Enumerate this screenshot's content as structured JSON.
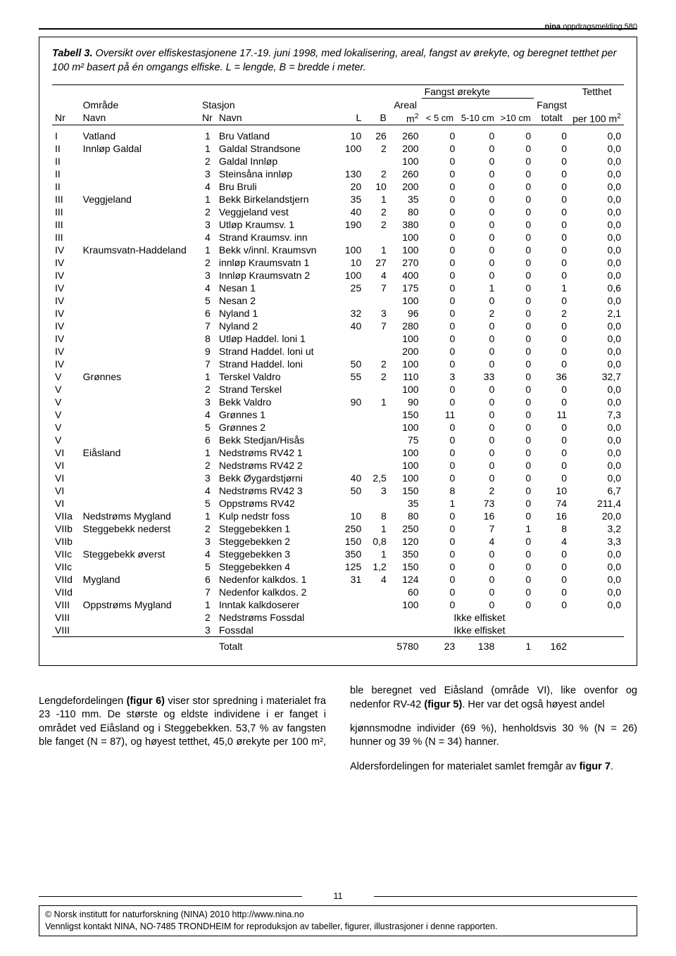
{
  "running_head_bold": "nina",
  "running_head_rest": " oppdragsmelding 580",
  "caption_label": "Tabell 3.",
  "caption_text": " Oversikt over elfiskestasjonene 17.-19. juni 1998, med lokalisering, areal, fangst av ørekyte, og beregnet tetthet per 100 m² basert på én omgangs elfiske. L = lengde, B = bredde i meter.",
  "headers": {
    "omrade": "Område",
    "nr1": "Nr",
    "navn1": "Navn",
    "stasjon": "Stasjon",
    "nr2": "Nr",
    "navn2": "Navn",
    "L": "L",
    "B": "B",
    "areal_group": "Areal",
    "areal_unit": "m²",
    "fangst_group": "Fangst ørekyte",
    "lt5": "< 5 cm",
    "r510": "5-10 cm",
    "gt10": ">10 cm",
    "fangst": "Fangst",
    "totalt": "totalt",
    "tetthet": "Tetthet",
    "per100": "per 100 m²"
  },
  "rows": [
    {
      "nr": "I",
      "omrade": "Vatland",
      "snr": "1",
      "stasjon": "Bru Vatland",
      "L": "10",
      "B": "26",
      "areal": "260",
      "lt5": "0",
      "r510": "0",
      "gt10": "0",
      "tot": "0",
      "tet": "0,0"
    },
    {
      "nr": "II",
      "omrade": "Innløp Galdal",
      "snr": "1",
      "stasjon": "Galdal Strandsone",
      "L": "100",
      "B": "2",
      "areal": "200",
      "lt5": "0",
      "r510": "0",
      "gt10": "0",
      "tot": "0",
      "tet": "0,0"
    },
    {
      "nr": "II",
      "omrade": "",
      "snr": "2",
      "stasjon": "Galdal Innløp",
      "L": "",
      "B": "",
      "areal": "100",
      "lt5": "0",
      "r510": "0",
      "gt10": "0",
      "tot": "0",
      "tet": "0,0"
    },
    {
      "nr": "II",
      "omrade": "",
      "snr": "3",
      "stasjon": "Steinsåna innløp",
      "L": "130",
      "B": "2",
      "areal": "260",
      "lt5": "0",
      "r510": "0",
      "gt10": "0",
      "tot": "0",
      "tet": "0,0"
    },
    {
      "nr": "II",
      "omrade": "",
      "snr": "4",
      "stasjon": "Bru Bruli",
      "L": "20",
      "B": "10",
      "areal": "200",
      "lt5": "0",
      "r510": "0",
      "gt10": "0",
      "tot": "0",
      "tet": "0,0"
    },
    {
      "nr": "III",
      "omrade": "Veggjeland",
      "snr": "1",
      "stasjon": "Bekk Birkelandstjern",
      "L": "35",
      "B": "1",
      "areal": "35",
      "lt5": "0",
      "r510": "0",
      "gt10": "0",
      "tot": "0",
      "tet": "0,0"
    },
    {
      "nr": "III",
      "omrade": "",
      "snr": "2",
      "stasjon": "Veggjeland vest",
      "L": "40",
      "B": "2",
      "areal": "80",
      "lt5": "0",
      "r510": "0",
      "gt10": "0",
      "tot": "0",
      "tet": "0,0"
    },
    {
      "nr": "III",
      "omrade": "",
      "snr": "3",
      "stasjon": "Utløp Kraumsv. 1",
      "L": "190",
      "B": "2",
      "areal": "380",
      "lt5": "0",
      "r510": "0",
      "gt10": "0",
      "tot": "0",
      "tet": "0,0"
    },
    {
      "nr": "III",
      "omrade": "",
      "snr": "4",
      "stasjon": "Strand Kraumsv. inn",
      "L": "",
      "B": "",
      "areal": "100",
      "lt5": "0",
      "r510": "0",
      "gt10": "0",
      "tot": "0",
      "tet": "0,0"
    },
    {
      "nr": "IV",
      "omrade": "Kraumsvatn-Haddeland",
      "snr": "1",
      "stasjon": "Bekk v/innl. Kraumsvn",
      "L": "100",
      "B": "1",
      "areal": "100",
      "lt5": "0",
      "r510": "0",
      "gt10": "0",
      "tot": "0",
      "tet": "0,0"
    },
    {
      "nr": "IV",
      "omrade": "",
      "snr": "2",
      "stasjon": "innløp Kraumsvatn 1",
      "L": "10",
      "B": "27",
      "areal": "270",
      "lt5": "0",
      "r510": "0",
      "gt10": "0",
      "tot": "0",
      "tet": "0,0"
    },
    {
      "nr": "IV",
      "omrade": "",
      "snr": "3",
      "stasjon": "Innløp Kraumsvatn 2",
      "L": "100",
      "B": "4",
      "areal": "400",
      "lt5": "0",
      "r510": "0",
      "gt10": "0",
      "tot": "0",
      "tet": "0,0"
    },
    {
      "nr": "IV",
      "omrade": "",
      "snr": "4",
      "stasjon": "Nesan 1",
      "L": "25",
      "B": "7",
      "areal": "175",
      "lt5": "0",
      "r510": "1",
      "gt10": "0",
      "tot": "1",
      "tet": "0,6"
    },
    {
      "nr": "IV",
      "omrade": "",
      "snr": "5",
      "stasjon": "Nesan 2",
      "L": "",
      "B": "",
      "areal": "100",
      "lt5": "0",
      "r510": "0",
      "gt10": "0",
      "tot": "0",
      "tet": "0,0"
    },
    {
      "nr": "IV",
      "omrade": "",
      "snr": "6",
      "stasjon": "Nyland 1",
      "L": "32",
      "B": "3",
      "areal": "96",
      "lt5": "0",
      "r510": "2",
      "gt10": "0",
      "tot": "2",
      "tet": "2,1"
    },
    {
      "nr": "IV",
      "omrade": "",
      "snr": "7",
      "stasjon": "Nyland 2",
      "L": "40",
      "B": "7",
      "areal": "280",
      "lt5": "0",
      "r510": "0",
      "gt10": "0",
      "tot": "0",
      "tet": "0,0"
    },
    {
      "nr": "IV",
      "omrade": "",
      "snr": "8",
      "stasjon": "Utløp Haddel. loni 1",
      "L": "",
      "B": "",
      "areal": "100",
      "lt5": "0",
      "r510": "0",
      "gt10": "0",
      "tot": "0",
      "tet": "0,0"
    },
    {
      "nr": "IV",
      "omrade": "",
      "snr": "9",
      "stasjon": "Strand Haddel. loni ut",
      "L": "",
      "B": "",
      "areal": "200",
      "lt5": "0",
      "r510": "0",
      "gt10": "0",
      "tot": "0",
      "tet": "0,0"
    },
    {
      "nr": "IV",
      "omrade": "",
      "snr": "7",
      "stasjon": "Strand Haddel. loni",
      "L": "50",
      "B": "2",
      "areal": "100",
      "lt5": "0",
      "r510": "0",
      "gt10": "0",
      "tot": "0",
      "tet": "0,0"
    },
    {
      "nr": "V",
      "omrade": "Grønnes",
      "snr": "1",
      "stasjon": "Terskel Valdro",
      "L": "55",
      "B": "2",
      "areal": "110",
      "lt5": "3",
      "r510": "33",
      "gt10": "0",
      "tot": "36",
      "tet": "32,7"
    },
    {
      "nr": "V",
      "omrade": "",
      "snr": "2",
      "stasjon": "Strand Terskel",
      "L": "",
      "B": "",
      "areal": "100",
      "lt5": "0",
      "r510": "0",
      "gt10": "0",
      "tot": "0",
      "tet": "0,0"
    },
    {
      "nr": "V",
      "omrade": "",
      "snr": "3",
      "stasjon": "Bekk Valdro",
      "L": "90",
      "B": "1",
      "areal": "90",
      "lt5": "0",
      "r510": "0",
      "gt10": "0",
      "tot": "0",
      "tet": "0,0"
    },
    {
      "nr": "V",
      "omrade": "",
      "snr": "4",
      "stasjon": "Grønnes 1",
      "L": "",
      "B": "",
      "areal": "150",
      "lt5": "11",
      "r510": "0",
      "gt10": "0",
      "tot": "11",
      "tet": "7,3"
    },
    {
      "nr": "V",
      "omrade": "",
      "snr": "5",
      "stasjon": "Grønnes 2",
      "L": "",
      "B": "",
      "areal": "100",
      "lt5": "0",
      "r510": "0",
      "gt10": "0",
      "tot": "0",
      "tet": "0,0"
    },
    {
      "nr": "V",
      "omrade": "",
      "snr": "6",
      "stasjon": "Bekk Stedjan/Hisås",
      "L": "",
      "B": "",
      "areal": "75",
      "lt5": "0",
      "r510": "0",
      "gt10": "0",
      "tot": "0",
      "tet": "0,0"
    },
    {
      "nr": "VI",
      "omrade": "Eiåsland",
      "snr": "1",
      "stasjon": "Nedstrøms RV42 1",
      "L": "",
      "B": "",
      "areal": "100",
      "lt5": "0",
      "r510": "0",
      "gt10": "0",
      "tot": "0",
      "tet": "0,0"
    },
    {
      "nr": "VI",
      "omrade": "",
      "snr": "2",
      "stasjon": "Nedstrøms RV42 2",
      "L": "",
      "B": "",
      "areal": "100",
      "lt5": "0",
      "r510": "0",
      "gt10": "0",
      "tot": "0",
      "tet": "0,0"
    },
    {
      "nr": "VI",
      "omrade": "",
      "snr": "3",
      "stasjon": "Bekk Øygardstjørni",
      "L": "40",
      "B": "2,5",
      "areal": "100",
      "lt5": "0",
      "r510": "0",
      "gt10": "0",
      "tot": "0",
      "tet": "0,0"
    },
    {
      "nr": "VI",
      "omrade": "",
      "snr": "4",
      "stasjon": "Nedstrøms RV42 3",
      "L": "50",
      "B": "3",
      "areal": "150",
      "lt5": "8",
      "r510": "2",
      "gt10": "0",
      "tot": "10",
      "tet": "6,7"
    },
    {
      "nr": "VI",
      "omrade": "",
      "snr": "5",
      "stasjon": "Oppstrøms RV42",
      "L": "",
      "B": "",
      "areal": "35",
      "lt5": "1",
      "r510": "73",
      "gt10": "0",
      "tot": "74",
      "tet": "211,4"
    },
    {
      "nr": "VIIa",
      "omrade": "Nedstrøms Mygland",
      "snr": "1",
      "stasjon": "Kulp nedstr foss",
      "L": "10",
      "B": "8",
      "areal": "80",
      "lt5": "0",
      "r510": "16",
      "gt10": "0",
      "tot": "16",
      "tet": "20,0"
    },
    {
      "nr": "VIIb",
      "omrade": "Steggebekk nederst",
      "snr": "2",
      "stasjon": "Steggebekken 1",
      "L": "250",
      "B": "1",
      "areal": "250",
      "lt5": "0",
      "r510": "7",
      "gt10": "1",
      "tot": "8",
      "tet": "3,2"
    },
    {
      "nr": "VIIb",
      "omrade": "",
      "snr": "3",
      "stasjon": "Steggebekken 2",
      "L": "150",
      "B": "0,8",
      "areal": "120",
      "lt5": "0",
      "r510": "4",
      "gt10": "0",
      "tot": "4",
      "tet": "3,3"
    },
    {
      "nr": "VIIc",
      "omrade": "Steggebekk øverst",
      "snr": "4",
      "stasjon": "Steggebekken 3",
      "L": "350",
      "B": "1",
      "areal": "350",
      "lt5": "0",
      "r510": "0",
      "gt10": "0",
      "tot": "0",
      "tet": "0,0"
    },
    {
      "nr": "VIIc",
      "omrade": "",
      "snr": "5",
      "stasjon": "Steggebekken 4",
      "L": "125",
      "B": "1,2",
      "areal": "150",
      "lt5": "0",
      "r510": "0",
      "gt10": "0",
      "tot": "0",
      "tet": "0,0"
    },
    {
      "nr": "VIId",
      "omrade": "Mygland",
      "snr": "6",
      "stasjon": "Nedenfor kalkdos. 1",
      "L": "31",
      "B": "4",
      "areal": "124",
      "lt5": "0",
      "r510": "0",
      "gt10": "0",
      "tot": "0",
      "tet": "0,0"
    },
    {
      "nr": "VIId",
      "omrade": "",
      "snr": "7",
      "stasjon": "Nedenfor kalkdos. 2",
      "L": "",
      "B": "",
      "areal": "60",
      "lt5": "0",
      "r510": "0",
      "gt10": "0",
      "tot": "0",
      "tet": "0,0"
    },
    {
      "nr": "VIII",
      "omrade": "Oppstrøms Mygland",
      "snr": "1",
      "stasjon": "Inntak kalkdoserer",
      "L": "",
      "B": "",
      "areal": "100",
      "lt5": "0",
      "r510": "0",
      "gt10": "0",
      "tot": "0",
      "tet": "0,0"
    },
    {
      "nr": "VIII",
      "omrade": "",
      "snr": "2",
      "stasjon": "Nedstrøms Fossdal",
      "L": "",
      "B": "",
      "areal": "",
      "lt5": "",
      "r510": "",
      "gt10": "",
      "tot": "",
      "tet": "",
      "note": "Ikke elfisket"
    },
    {
      "nr": "VIII",
      "omrade": "",
      "snr": "3",
      "stasjon": "Fossdal",
      "L": "",
      "B": "",
      "areal": "",
      "lt5": "",
      "r510": "",
      "gt10": "",
      "tot": "",
      "tet": "",
      "note": "Ikke elfisket"
    }
  ],
  "totals": {
    "label": "Totalt",
    "areal": "5780",
    "lt5": "23",
    "r510": "138",
    "gt10": "1",
    "tot": "162"
  },
  "body_p1": "Lengdefordelingen (figur 6) viser stor spredning i materialet fra 23 -110 mm. De største og eldste individene i er fanget i området ved Eiåsland og i Steggebekken. 53,7 % av fangsten ble fanget (N = 87), og høyest tetthet, 45,0 ørekyte per 100 m², ble beregnet ved Eiåsland (område VI), like ovenfor og nedenfor RV-42 (figur 5). Her var det også høyest andel",
  "body_p2a": "kjønnsmodne individer (69 %), henholdsvis 30 % (N = 26) hunner og 39 % (N = 34) hanner.",
  "body_p2b": "Aldersfordelingen for materialet samlet fremgår av figur 7.",
  "page_number": "11",
  "footer_l1": "© Norsk institutt for naturforskning (NINA) 2010 http://www.nina.no",
  "footer_l2": "Vennligst kontakt NINA, NO-7485 TRONDHEIM for reproduksjon av tabeller, figurer, illustrasjoner i denne rapporten."
}
